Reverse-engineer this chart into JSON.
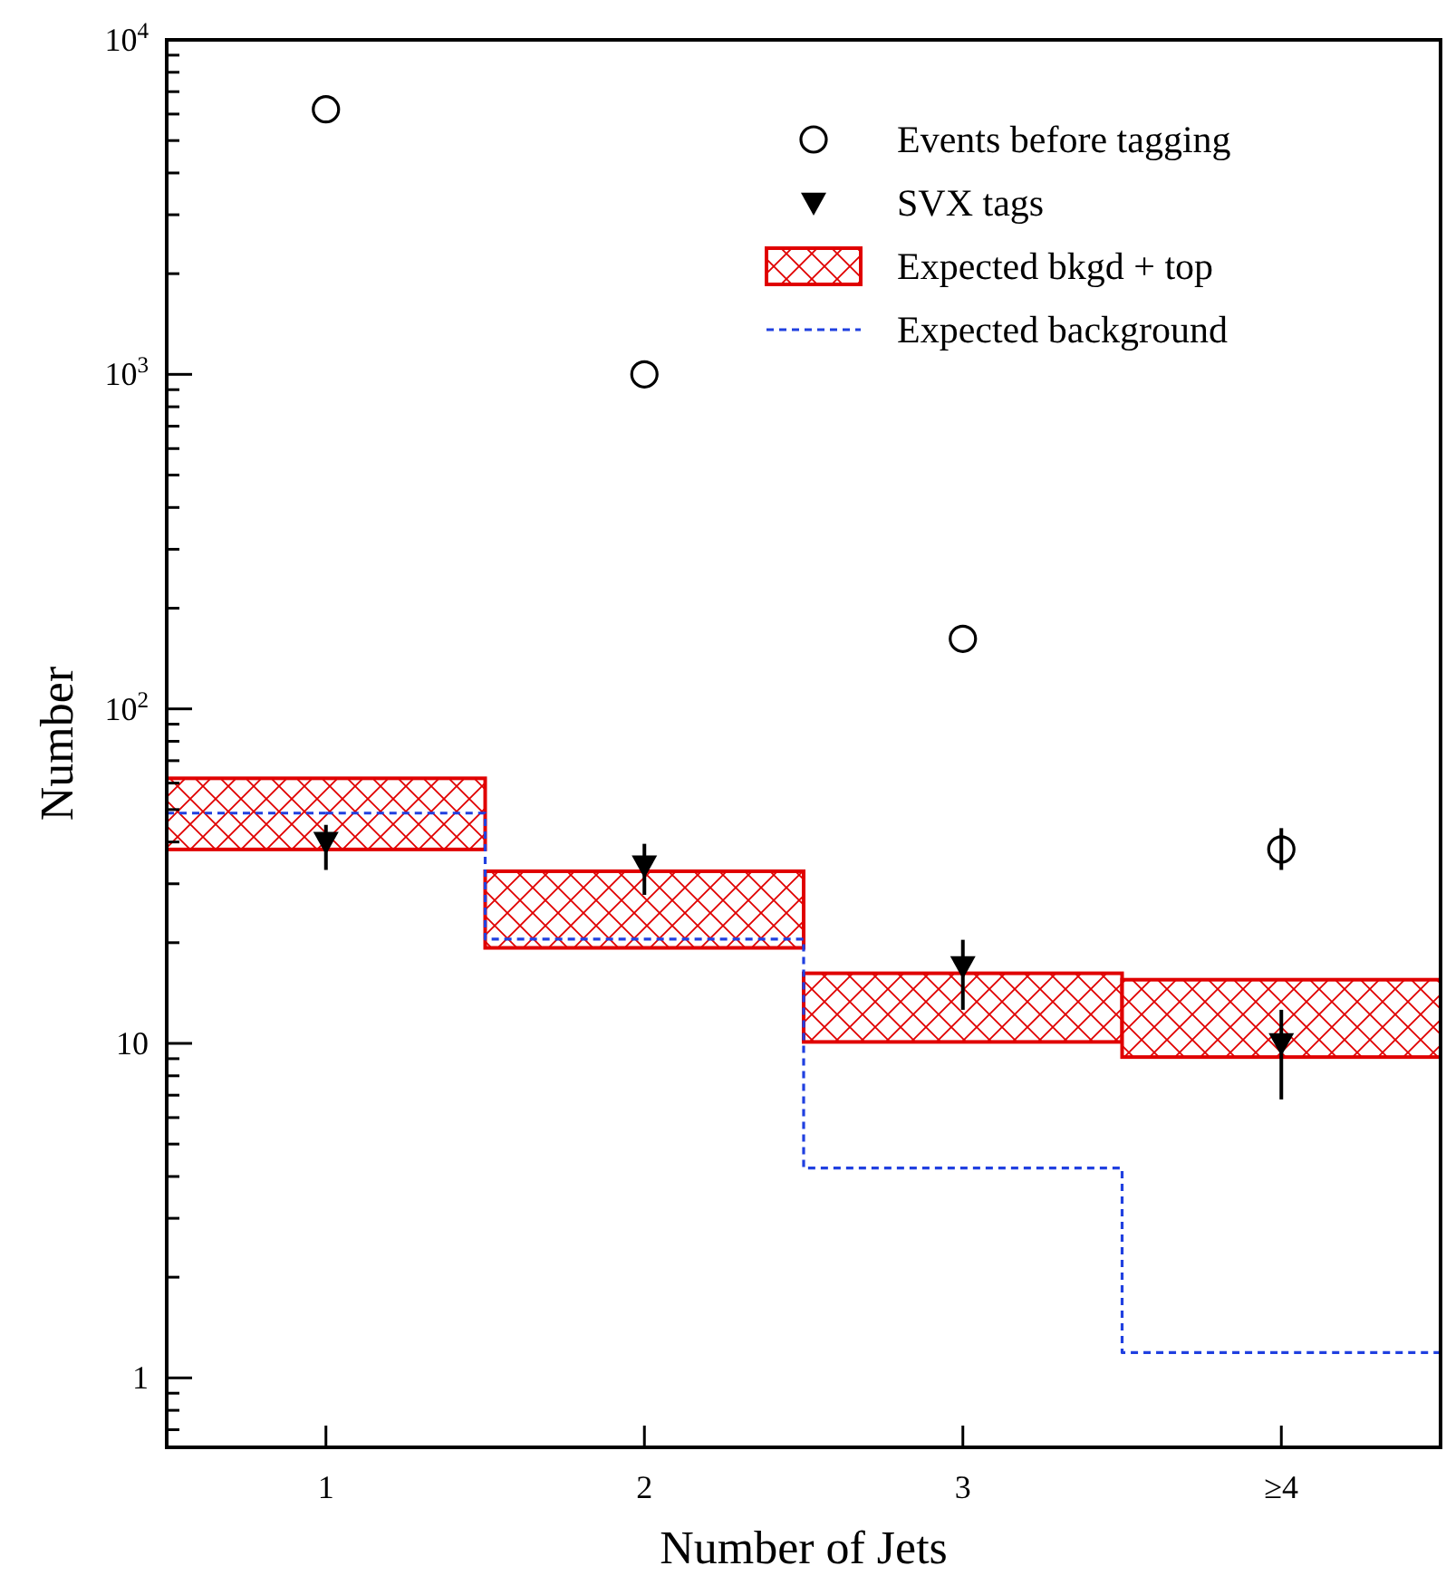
{
  "chart_data": {
    "type": "scatter",
    "xlabel": "Number of Jets",
    "ylabel": "Number",
    "categories": [
      "1",
      "2",
      "3",
      "≥4"
    ],
    "log": "y",
    "ylim": [
      0.62,
      10000
    ],
    "yticks": [
      {
        "value": 0.7,
        "label": null
      },
      {
        "value": 0.8,
        "label": null
      },
      {
        "value": 0.9,
        "label": null
      },
      1,
      {
        "value": 2,
        "label": null
      },
      {
        "value": 3,
        "label": null
      },
      {
        "value": 4,
        "label": null
      },
      {
        "value": 5,
        "label": null
      },
      {
        "value": 6,
        "label": null
      },
      {
        "value": 7,
        "label": null
      },
      {
        "value": 8,
        "label": null
      },
      {
        "value": 9,
        "label": null
      },
      10,
      {
        "value": 20,
        "label": null
      },
      {
        "value": 30,
        "label": null
      },
      {
        "value": 40,
        "label": null
      },
      {
        "value": 50,
        "label": null
      },
      {
        "value": 60,
        "label": null
      },
      {
        "value": 70,
        "label": null
      },
      {
        "value": 80,
        "label": null
      },
      {
        "value": 90,
        "label": null
      },
      {
        "value": 100,
        "label": "10$^{2}$"
      },
      {
        "value": 200,
        "label": null
      },
      {
        "value": 300,
        "label": null
      },
      {
        "value": 400,
        "label": null
      },
      {
        "value": 500,
        "label": null
      },
      {
        "value": 600,
        "label": null
      },
      {
        "value": 700,
        "label": null
      },
      {
        "value": 800,
        "label": null
      },
      {
        "value": 900,
        "label": null
      },
      {
        "value": 1000,
        "label": "10$^{3}$"
      },
      {
        "value": 2000,
        "label": null
      },
      {
        "value": 3000,
        "label": null
      },
      {
        "value": 4000,
        "label": null
      },
      {
        "value": 5000,
        "label": null
      },
      {
        "value": 6000,
        "label": null
      },
      {
        "value": 7000,
        "label": null
      },
      {
        "value": 8000,
        "label": null
      },
      {
        "value": 9000,
        "label": null
      },
      {
        "value": 10000,
        "label": "10$^{4}$"
      }
    ],
    "legend": "top right",
    "grid": false,
    "series": [
      {
        "name": "Events before tagging",
        "color": "#000000",
        "marker": "circle",
        "values": [
          6200,
          1000,
          162,
          38
        ],
        "errors": [
          null,
          null,
          null,
          [
            33,
            44
          ]
        ]
      },
      {
        "name": "SVX tags",
        "color": "#000000",
        "marker": "triangle",
        "values": [
          40,
          34,
          17,
          10
        ],
        "errors": [
          [
            33,
            45
          ],
          [
            27.8,
            39.5
          ],
          [
            12.6,
            20.4
          ],
          [
            6.8,
            12.6
          ]
        ]
      },
      {
        "name": "Expected bkgd + top",
        "type": "bar",
        "color": "#e00000",
        "base": [
          38,
          19.3,
          10.1,
          9.1
        ],
        "values": [
          24,
          13.4,
          6.1,
          6.4
        ]
      },
      {
        "name": "Expected background",
        "type": "step",
        "color": "#2040e0",
        "line_style": "dashed",
        "marker": "none",
        "values": [
          48.8,
          20.5,
          4.24,
          1.19
        ]
      }
    ]
  }
}
